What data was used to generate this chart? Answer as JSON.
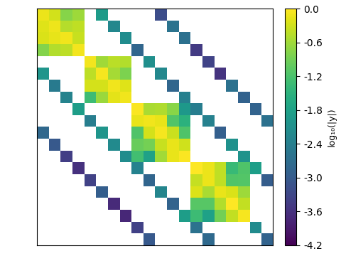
{
  "n": 20,
  "block_sizes": [
    4,
    4,
    5,
    5
  ],
  "block_starts": [
    0,
    4,
    8,
    13
  ],
  "diag_offsets": [
    5,
    10
  ],
  "colorbar_label": "log₁₀(|y|)",
  "cmap": "viridis",
  "vmin": -4.2,
  "vmax": 0.0,
  "figsize": [
    4.8,
    3.6
  ],
  "dpi": 100,
  "seed": 1234
}
